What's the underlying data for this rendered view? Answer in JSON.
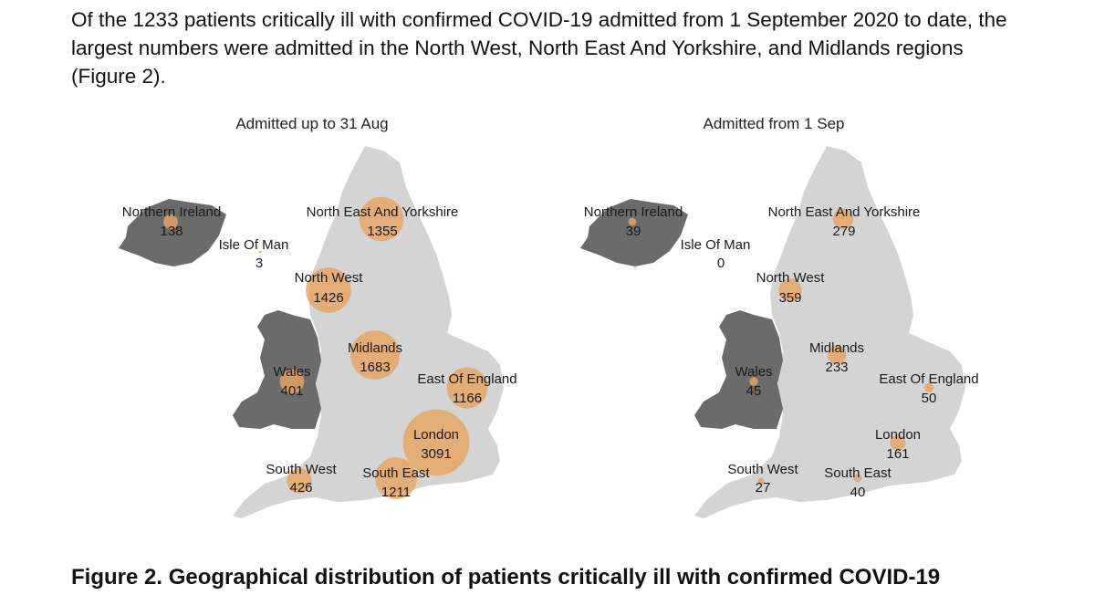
{
  "intro": {
    "text": "Of the 1233 patients critically ill with confirmed COVID-19 admitted from 1 September 2020 to date, the largest numbers were admitted in the North West, North East And Yorkshire, and Midlands regions (Figure 2)."
  },
  "chart_data": [
    {
      "type": "bubble-map",
      "title": "Admitted up to 31 Aug",
      "regions": [
        {
          "name": "Northern Ireland",
          "value": 138
        },
        {
          "name": "Isle Of Man",
          "value": 3
        },
        {
          "name": "North East And Yorkshire",
          "value": 1355
        },
        {
          "name": "North West",
          "value": 1426
        },
        {
          "name": "Midlands",
          "value": 1683
        },
        {
          "name": "Wales",
          "value": 401
        },
        {
          "name": "East Of England",
          "value": 1166
        },
        {
          "name": "London",
          "value": 3091
        },
        {
          "name": "South West",
          "value": 426
        },
        {
          "name": "South East",
          "value": 1211
        }
      ]
    },
    {
      "type": "bubble-map",
      "title": "Admitted from 1 Sep",
      "regions": [
        {
          "name": "Northern Ireland",
          "value": 39
        },
        {
          "name": "Isle Of Man",
          "value": 0
        },
        {
          "name": "North East And Yorkshire",
          "value": 279
        },
        {
          "name": "North West",
          "value": 359
        },
        {
          "name": "Midlands",
          "value": 233
        },
        {
          "name": "Wales",
          "value": 45
        },
        {
          "name": "East Of England",
          "value": 50
        },
        {
          "name": "London",
          "value": 161
        },
        {
          "name": "South West",
          "value": 27
        },
        {
          "name": "South East",
          "value": 40
        }
      ]
    }
  ],
  "caption": {
    "text": "Figure 2. Geographical distribution of patients critically ill with confirmed COVID-19"
  },
  "colors": {
    "bubble": "#e8a560",
    "england": "#d4d4d4",
    "wales_ni": "#6b6b6b"
  }
}
